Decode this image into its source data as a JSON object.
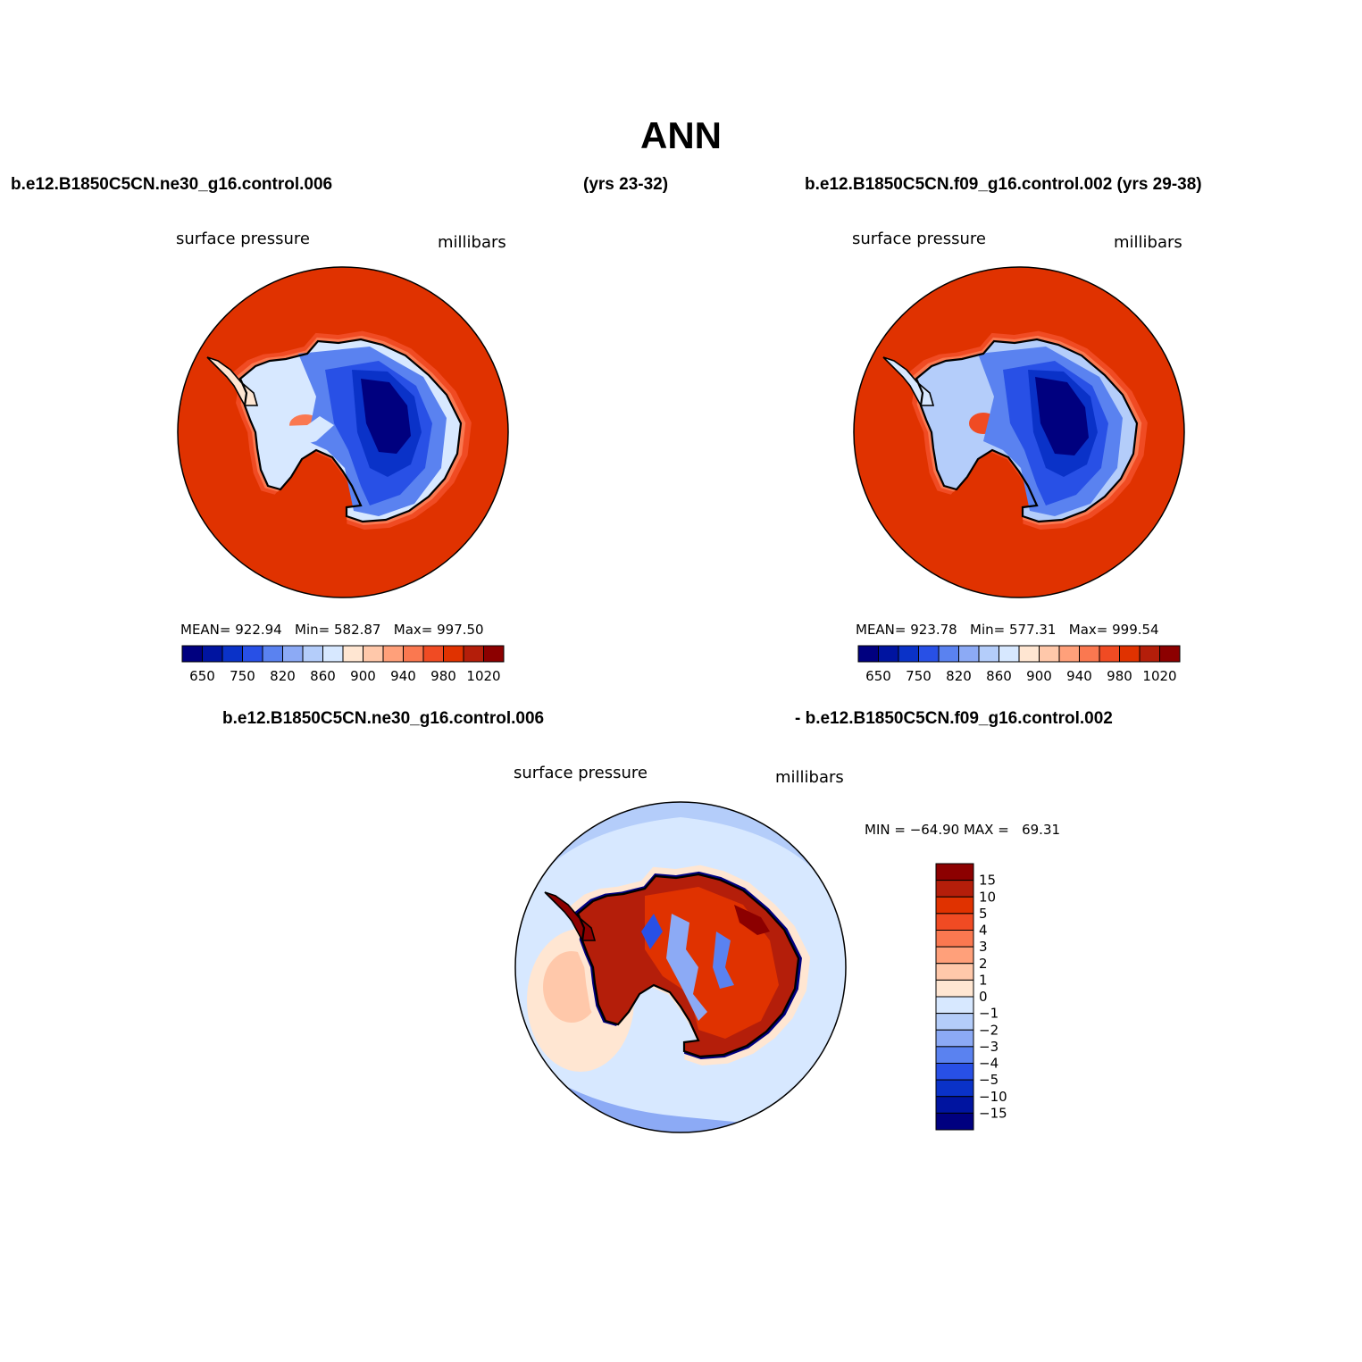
{
  "title": "ANN",
  "header": {
    "left_case": "b.e12.B1850C5CN.ne30_g16.control.006",
    "left_years": "(yrs 23-32)",
    "right_case": "b.e12.B1850C5CN.f09_g16.control.002 (yrs 29-38)"
  },
  "panels": [
    {
      "variable": "surface pressure",
      "units": "millibars",
      "stats": "MEAN= 922.94   Min= 582.87   Max= 997.50"
    },
    {
      "variable": "surface pressure",
      "units": "millibars",
      "stats": "MEAN= 923.78   Min= 577.31   Max= 999.54"
    }
  ],
  "abs_colorbar": {
    "colors": [
      "#00007f",
      "#0014a0",
      "#0a32c8",
      "#2850e6",
      "#5a82f0",
      "#8caaf5",
      "#b4cdfa",
      "#d7e8ff",
      "#ffe6d2",
      "#ffc8aa",
      "#ffa07a",
      "#fa7850",
      "#f04b23",
      "#e03200",
      "#b41e0a",
      "#8c0000"
    ],
    "labels": [
      "650",
      "750",
      "820",
      "860",
      "900",
      "940",
      "980",
      "1020"
    ]
  },
  "diff": {
    "title_left": "b.e12.B1850C5CN.ne30_g16.control.006",
    "title_right": "- b.e12.B1850C5CN.f09_g16.control.002",
    "variable": "surface pressure",
    "units": "millibars",
    "stats": "MIN = −64.90 MAX =   69.31",
    "colorbar": {
      "colors_top_to_bottom": [
        "#8c0000",
        "#b41e0a",
        "#e03200",
        "#f04b23",
        "#fa7850",
        "#ffa07a",
        "#ffc8aa",
        "#ffe6d2",
        "#d7e8ff",
        "#b4cdfa",
        "#8caaf5",
        "#5a82f0",
        "#2850e6",
        "#0a32c8",
        "#0014a0",
        "#00007f"
      ],
      "labels": [
        "15",
        "10",
        "5",
        "4",
        "3",
        "2",
        "1",
        "0",
        "−1",
        "−2",
        "−3",
        "−4",
        "−5",
        "−10",
        "−15"
      ]
    }
  },
  "colors": {
    "ocean_abs": "#e03200",
    "interior_low": "#00007f",
    "diff_ocean_light": "#d7e8ff",
    "diff_land_high": "#b41e0a"
  }
}
